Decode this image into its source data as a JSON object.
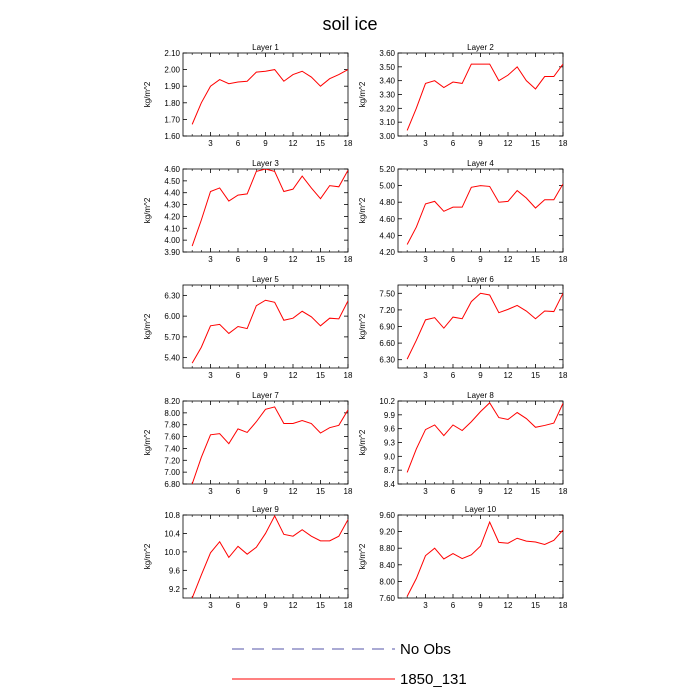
{
  "title": "soil ice",
  "legend": {
    "items": [
      {
        "name": "No Obs",
        "style": "dashed",
        "color": "#5555aa"
      },
      {
        "name": "1850_131",
        "style": "solid",
        "color": "#ff0000"
      }
    ]
  },
  "colors": {
    "series": "#ff0000",
    "axis": "#000000"
  },
  "chart_data": [
    {
      "type": "line",
      "title": "Layer 1",
      "ylabel": "kg/m^2",
      "xlim": [
        0,
        18
      ],
      "ylim": [
        1.6,
        2.1
      ],
      "xticks": [
        3,
        6,
        9,
        12,
        15,
        18
      ],
      "yticks": [
        "1.60",
        "1.70",
        "1.80",
        "1.90",
        "2.00",
        "2.10"
      ],
      "x": [
        1,
        2,
        3,
        4,
        5,
        6,
        7,
        8,
        9,
        10,
        11,
        12,
        13,
        14,
        15,
        16,
        17,
        18
      ],
      "series": [
        {
          "name": "1850_131",
          "values": [
            1.67,
            1.8,
            1.9,
            1.94,
            1.915,
            1.925,
            1.93,
            1.985,
            1.99,
            2.0,
            1.93,
            1.97,
            1.99,
            1.955,
            1.9,
            1.945,
            1.97,
            2.0
          ]
        }
      ]
    },
    {
      "type": "line",
      "title": "Layer 2",
      "ylabel": "kg/m^2",
      "xlim": [
        0,
        18
      ],
      "ylim": [
        3.0,
        3.6
      ],
      "xticks": [
        3,
        6,
        9,
        12,
        15,
        18
      ],
      "yticks": [
        "3.00",
        "3.10",
        "3.20",
        "3.30",
        "3.40",
        "3.50",
        "3.60"
      ],
      "x": [
        1,
        2,
        3,
        4,
        5,
        6,
        7,
        8,
        9,
        10,
        11,
        12,
        13,
        14,
        15,
        16,
        17,
        18
      ],
      "series": [
        {
          "name": "1850_131",
          "values": [
            3.04,
            3.2,
            3.38,
            3.4,
            3.35,
            3.39,
            3.38,
            3.52,
            3.52,
            3.52,
            3.4,
            3.44,
            3.5,
            3.4,
            3.34,
            3.43,
            3.43,
            3.52
          ]
        }
      ]
    },
    {
      "type": "line",
      "title": "Layer 3",
      "ylabel": "kg/m^2",
      "xlim": [
        0,
        18
      ],
      "ylim": [
        3.9,
        4.6
      ],
      "xticks": [
        3,
        6,
        9,
        12,
        15,
        18
      ],
      "yticks": [
        "3.90",
        "4.00",
        "4.10",
        "4.20",
        "4.30",
        "4.40",
        "4.50",
        "4.60"
      ],
      "x": [
        1,
        2,
        3,
        4,
        5,
        6,
        7,
        8,
        9,
        10,
        11,
        12,
        13,
        14,
        15,
        16,
        17,
        18
      ],
      "series": [
        {
          "name": "1850_131",
          "values": [
            3.95,
            4.17,
            4.41,
            4.44,
            4.33,
            4.38,
            4.39,
            4.58,
            4.6,
            4.58,
            4.41,
            4.43,
            4.54,
            4.44,
            4.35,
            4.46,
            4.45,
            4.59
          ]
        }
      ]
    },
    {
      "type": "line",
      "title": "Layer 4",
      "ylabel": "kg/m^2",
      "xlim": [
        0,
        18
      ],
      "ylim": [
        4.2,
        5.2
      ],
      "xticks": [
        3,
        6,
        9,
        12,
        15,
        18
      ],
      "yticks": [
        "4.20",
        "4.40",
        "4.60",
        "4.80",
        "5.00",
        "5.20"
      ],
      "x": [
        1,
        2,
        3,
        4,
        5,
        6,
        7,
        8,
        9,
        10,
        11,
        12,
        13,
        14,
        15,
        16,
        17,
        18
      ],
      "series": [
        {
          "name": "1850_131",
          "values": [
            4.29,
            4.5,
            4.78,
            4.81,
            4.69,
            4.74,
            4.74,
            4.98,
            5.0,
            4.99,
            4.8,
            4.81,
            4.94,
            4.85,
            4.73,
            4.83,
            4.83,
            5.02
          ]
        }
      ]
    },
    {
      "type": "line",
      "title": "Layer 5",
      "ylabel": "kg/m^2",
      "xlim": [
        0,
        18
      ],
      "ylim": [
        5.25,
        6.45
      ],
      "xticks": [
        3,
        6,
        9,
        12,
        15,
        18
      ],
      "yticks": [
        "5.40",
        "5.70",
        "6.00",
        "6.30"
      ],
      "x": [
        1,
        2,
        3,
        4,
        5,
        6,
        7,
        8,
        9,
        10,
        11,
        12,
        13,
        14,
        15,
        16,
        17,
        18
      ],
      "series": [
        {
          "name": "1850_131",
          "values": [
            5.32,
            5.55,
            5.86,
            5.88,
            5.75,
            5.85,
            5.82,
            6.15,
            6.23,
            6.2,
            5.94,
            5.97,
            6.07,
            5.99,
            5.86,
            5.97,
            5.96,
            6.22
          ]
        }
      ]
    },
    {
      "type": "line",
      "title": "Layer 6",
      "ylabel": "kg/m^2",
      "xlim": [
        0,
        18
      ],
      "ylim": [
        6.15,
        7.65
      ],
      "xticks": [
        3,
        6,
        9,
        12,
        15,
        18
      ],
      "yticks": [
        "6.30",
        "6.60",
        "6.90",
        "7.20",
        "7.50"
      ],
      "x": [
        1,
        2,
        3,
        4,
        5,
        6,
        7,
        8,
        9,
        10,
        11,
        12,
        13,
        14,
        15,
        16,
        17,
        18
      ],
      "series": [
        {
          "name": "1850_131",
          "values": [
            6.31,
            6.65,
            7.02,
            7.06,
            6.87,
            7.07,
            7.04,
            7.35,
            7.5,
            7.47,
            7.15,
            7.21,
            7.28,
            7.18,
            7.04,
            7.18,
            7.17,
            7.5
          ]
        }
      ]
    },
    {
      "type": "line",
      "title": "Layer 7",
      "ylabel": "kg/m^2",
      "xlim": [
        0,
        18
      ],
      "ylim": [
        6.8,
        8.2
      ],
      "xticks": [
        3,
        6,
        9,
        12,
        15,
        18
      ],
      "yticks": [
        "6.80",
        "7.00",
        "7.20",
        "7.40",
        "7.60",
        "7.80",
        "8.00",
        "8.20"
      ],
      "x": [
        1,
        2,
        3,
        4,
        5,
        6,
        7,
        8,
        9,
        10,
        11,
        12,
        13,
        14,
        15,
        16,
        17,
        18
      ],
      "series": [
        {
          "name": "1850_131",
          "values": [
            6.8,
            7.25,
            7.63,
            7.65,
            7.48,
            7.73,
            7.67,
            7.85,
            8.06,
            8.1,
            7.82,
            7.82,
            7.87,
            7.82,
            7.66,
            7.75,
            7.79,
            8.05
          ]
        }
      ]
    },
    {
      "type": "line",
      "title": "Layer 8",
      "ylabel": "kg/m^2",
      "xlim": [
        0,
        18
      ],
      "ylim": [
        8.4,
        10.2
      ],
      "xticks": [
        3,
        6,
        9,
        12,
        15,
        18
      ],
      "yticks": [
        "8.4",
        "8.7",
        "9.0",
        "9.3",
        "9.6",
        "9.9",
        "10.2"
      ],
      "x": [
        1,
        2,
        3,
        4,
        5,
        6,
        7,
        8,
        9,
        10,
        11,
        12,
        13,
        14,
        15,
        16,
        17,
        18
      ],
      "series": [
        {
          "name": "1850_131",
          "values": [
            8.65,
            9.16,
            9.58,
            9.68,
            9.45,
            9.68,
            9.56,
            9.75,
            9.97,
            10.16,
            9.84,
            9.8,
            9.95,
            9.82,
            9.63,
            9.67,
            9.72,
            10.15
          ]
        }
      ]
    },
    {
      "type": "line",
      "title": "Layer 9",
      "ylabel": "kg/m^2",
      "xlim": [
        0,
        18
      ],
      "ylim": [
        9.0,
        10.8
      ],
      "xticks": [
        3,
        6,
        9,
        12,
        15,
        18
      ],
      "yticks": [
        "9.2",
        "9.6",
        "10.0",
        "10.4",
        "10.8"
      ],
      "x": [
        1,
        2,
        3,
        4,
        5,
        6,
        7,
        8,
        9,
        10,
        11,
        12,
        13,
        14,
        15,
        16,
        17,
        18
      ],
      "series": [
        {
          "name": "1850_131",
          "values": [
            9.0,
            9.5,
            9.98,
            10.22,
            9.88,
            10.12,
            9.95,
            10.1,
            10.4,
            10.78,
            10.38,
            10.34,
            10.48,
            10.34,
            10.24,
            10.24,
            10.34,
            10.7
          ]
        }
      ]
    },
    {
      "type": "line",
      "title": "Layer 10",
      "ylabel": "kg/m^2",
      "xlim": [
        0,
        18
      ],
      "ylim": [
        7.6,
        9.6
      ],
      "xticks": [
        3,
        6,
        9,
        12,
        15,
        18
      ],
      "yticks": [
        "7.60",
        "8.00",
        "8.40",
        "8.80",
        "9.20",
        "9.60"
      ],
      "x": [
        1,
        2,
        3,
        4,
        5,
        6,
        7,
        8,
        9,
        10,
        11,
        12,
        13,
        14,
        15,
        16,
        17,
        18
      ],
      "series": [
        {
          "name": "1850_131",
          "values": [
            7.64,
            8.07,
            8.62,
            8.8,
            8.54,
            8.67,
            8.55,
            8.64,
            8.85,
            9.43,
            8.94,
            8.92,
            9.04,
            8.97,
            8.95,
            8.89,
            8.99,
            9.24
          ]
        }
      ]
    }
  ]
}
